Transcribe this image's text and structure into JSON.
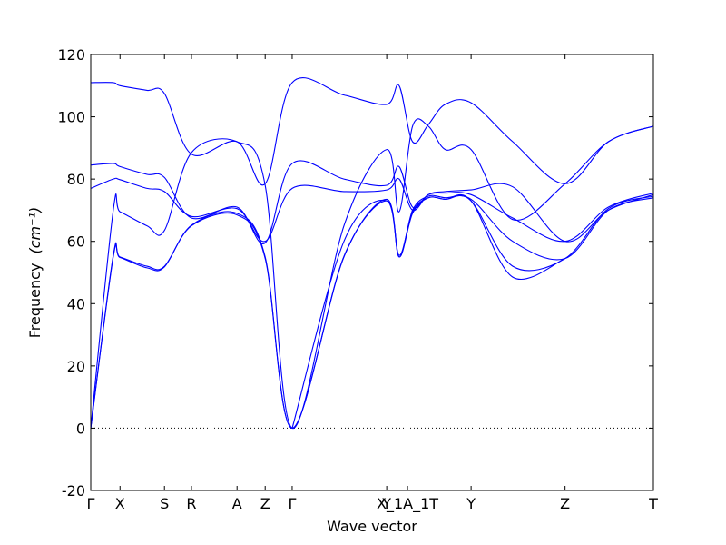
{
  "chart_data": {
    "type": "line",
    "xlabel": "Wave vector",
    "ylabel": "Frequency",
    "ylabel_unit": "(cm⁻¹)",
    "ylim": [
      -20,
      120
    ],
    "yticks": [
      -20,
      0,
      20,
      40,
      60,
      80,
      100,
      120
    ],
    "xlim": [
      0,
      1
    ],
    "xticks": [
      {
        "x": 0.0,
        "label": "Γ"
      },
      {
        "x": 0.052,
        "label": "X"
      },
      {
        "x": 0.131,
        "label": "S"
      },
      {
        "x": 0.179,
        "label": "R"
      },
      {
        "x": 0.26,
        "label": "A"
      },
      {
        "x": 0.31,
        "label": "Z"
      },
      {
        "x": 0.358,
        "label": "Γ"
      },
      {
        "x": 0.526,
        "label": "Y"
      },
      {
        "x": 0.563,
        "label": "X_1A_1T"
      },
      {
        "x": 0.676,
        "label": "Y"
      },
      {
        "x": 0.843,
        "label": "Z"
      },
      {
        "x": 1.0,
        "label": "T"
      }
    ],
    "zero_line": "dotted",
    "grid": false,
    "series_color": "#0000ff",
    "series": [
      {
        "x": [
          0,
          0.04,
          0.052,
          0.1,
          0.131,
          0.179,
          0.26,
          0.31,
          0.358,
          0.45,
          0.526,
          0.548,
          0.572,
          0.6,
          0.63,
          0.676,
          0.75,
          0.843,
          0.92,
          1.0
        ],
        "y": [
          0,
          70,
          69.5,
          65,
          63.5,
          88.5,
          92,
          78,
          0,
          65,
          89.5,
          69.5,
          97,
          97,
          89.5,
          89.5,
          67,
          78.5,
          92,
          97
        ]
      },
      {
        "x": [
          0,
          0.04,
          0.052,
          0.1,
          0.131,
          0.179,
          0.26,
          0.31,
          0.358,
          0.45,
          0.526,
          0.548,
          0.572,
          0.6,
          0.63,
          0.676,
          0.75,
          0.843,
          0.92,
          1.0
        ],
        "y": [
          0,
          55.5,
          55,
          52,
          52,
          65,
          68.5,
          54.5,
          0,
          55,
          73.5,
          55,
          70,
          74.5,
          74,
          73.5,
          60,
          54.5,
          70,
          74
        ]
      },
      {
        "x": [
          0,
          0.04,
          0.052,
          0.1,
          0.131,
          0.179,
          0.26,
          0.31,
          0.358,
          0.45,
          0.526,
          0.548,
          0.572,
          0.6,
          0.63,
          0.676,
          0.75,
          0.843,
          0.92,
          1.0
        ],
        "y": [
          0,
          55,
          54.8,
          51.5,
          51.8,
          65.2,
          69,
          55,
          0,
          55.2,
          73,
          55.5,
          69.5,
          74,
          73.5,
          73,
          52,
          54.5,
          70.5,
          74.5
        ]
      },
      {
        "x": [
          0,
          0.04,
          0.052,
          0.1,
          0.131,
          0.179,
          0.26,
          0.31,
          0.358,
          0.45,
          0.526,
          0.548,
          0.572,
          0.6,
          0.63,
          0.676,
          0.75,
          0.843,
          0.92,
          1.0
        ],
        "y": [
          77,
          80,
          79.8,
          77,
          76,
          68,
          70.5,
          60,
          77,
          76,
          76.5,
          80,
          70,
          75,
          76,
          76.5,
          77.5,
          60,
          70,
          75
        ]
      },
      {
        "x": [
          0,
          0.04,
          0.052,
          0.1,
          0.131,
          0.179,
          0.26,
          0.31,
          0.358,
          0.45,
          0.526,
          0.548,
          0.572,
          0.6,
          0.63,
          0.676,
          0.75,
          0.843,
          0.92,
          1.0
        ],
        "y": [
          84.5,
          85,
          84,
          81.5,
          80.5,
          67.5,
          71,
          59.5,
          85,
          80,
          78,
          84,
          71,
          75,
          75.5,
          75,
          67.5,
          60,
          71,
          75.5
        ]
      },
      {
        "x": [
          0,
          0.04,
          0.052,
          0.1,
          0.131,
          0.179,
          0.26,
          0.31,
          0.358,
          0.45,
          0.526,
          0.548,
          0.572,
          0.6,
          0.63,
          0.676,
          0.75,
          0.843,
          0.92,
          1.0
        ],
        "y": [
          111,
          111,
          110,
          108.5,
          107.5,
          88,
          92,
          78.5,
          111,
          107,
          104,
          110,
          92,
          97.5,
          104,
          104.5,
          92,
          78.5,
          92,
          97
        ]
      },
      {
        "x": [
          0.358,
          0.45,
          0.526,
          0.548,
          0.572,
          0.6,
          0.63,
          0.676,
          0.75,
          0.843
        ],
        "y": [
          0,
          60,
          73,
          55,
          69,
          74,
          73.5,
          73,
          48.5,
          54.5
        ]
      }
    ]
  }
}
